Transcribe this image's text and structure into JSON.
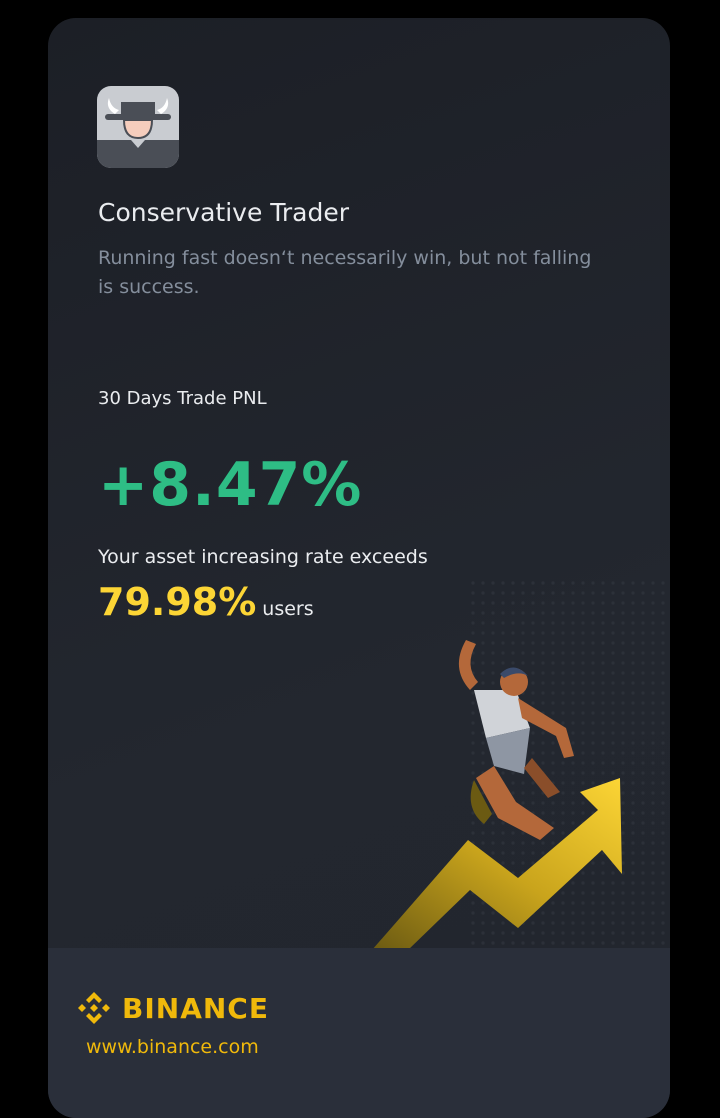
{
  "profile": {
    "avatar_icon": "cowboy-bull-icon",
    "title": "Conservative Trader",
    "subtitle": "Running fast doesn‘t necessarily win, but not falling is success."
  },
  "stats": {
    "pnl_label": "30 Days Trade PNL",
    "pnl_value": "+8.47%",
    "exceed_text": "Your asset increasing rate exceeds",
    "exceed_rate": "79.98%",
    "exceed_suffix": "users"
  },
  "footer": {
    "brand": "BINANCE",
    "url": "www.binance.com"
  },
  "colors": {
    "positive": "#2ebd85",
    "highlight": "#fcd535",
    "brand": "#f0b90b"
  }
}
